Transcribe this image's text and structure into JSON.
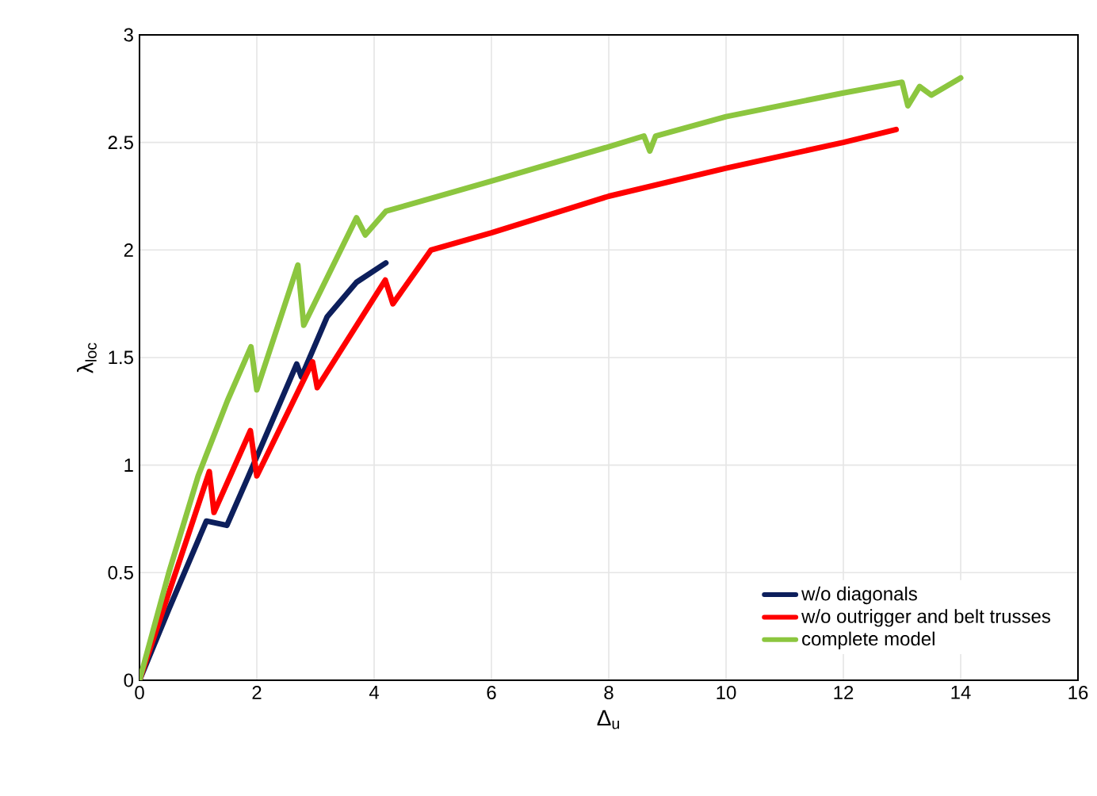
{
  "chart_data": {
    "type": "line",
    "xlabel": "Δ$_{u}$",
    "ylabel": "λ$_{loc}$",
    "xlim": [
      0,
      16
    ],
    "ylim": [
      0,
      3
    ],
    "xticks": [
      0,
      2,
      4,
      6,
      8,
      10,
      12,
      14,
      16
    ],
    "yticks": [
      0,
      0.5,
      1,
      1.5,
      2,
      2.5,
      3
    ],
    "grid": true,
    "legend": "bottom right",
    "marker": "none",
    "line_style": "solid",
    "series": [
      {
        "name": "w/o diagonals",
        "color": "#0d1f5c",
        "x": [
          0,
          0.5,
          1.14,
          1.49,
          1.86,
          2.68,
          2.76,
          3.2,
          3.7,
          4.2
        ],
        "values": [
          0,
          0.33,
          0.74,
          0.72,
          0.95,
          1.47,
          1.41,
          1.69,
          1.85,
          1.94
        ]
      },
      {
        "name": "w/o outrigger and belt trusses",
        "color": "#ff0000",
        "x": [
          0,
          0.8,
          1.19,
          1.27,
          1.89,
          2.0,
          2.95,
          3.03,
          4.19,
          4.32,
          4.97,
          6,
          8,
          10,
          12,
          12.9
        ],
        "values": [
          0,
          0.65,
          0.97,
          0.78,
          1.16,
          0.95,
          1.48,
          1.36,
          1.86,
          1.75,
          2.0,
          2.08,
          2.25,
          2.38,
          2.5,
          2.56
        ]
      },
      {
        "name": "complete model",
        "color": "#8cc63f",
        "x": [
          0,
          0.5,
          1,
          1.5,
          1.9,
          2.0,
          2.7,
          2.8,
          3.7,
          3.85,
          4.2,
          6,
          8,
          8.6,
          8.7,
          8.8,
          10,
          12,
          13,
          13.1,
          13.3,
          13.5,
          14
        ],
        "values": [
          0,
          0.5,
          0.95,
          1.3,
          1.55,
          1.35,
          1.93,
          1.65,
          2.15,
          2.07,
          2.18,
          2.32,
          2.48,
          2.53,
          2.46,
          2.53,
          2.62,
          2.73,
          2.78,
          2.67,
          2.76,
          2.72,
          2.8
        ]
      }
    ]
  }
}
